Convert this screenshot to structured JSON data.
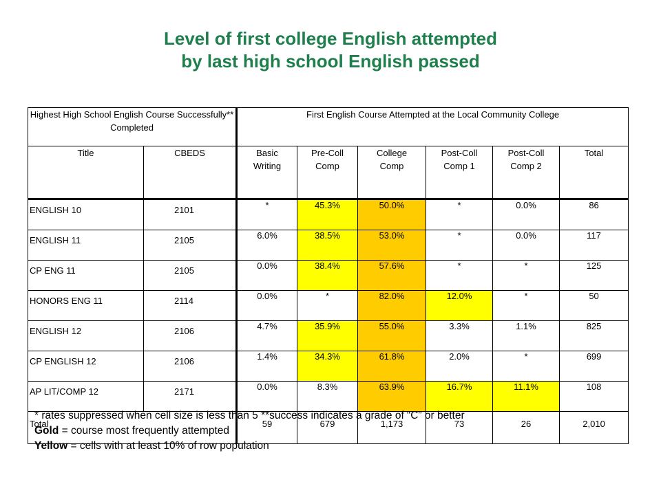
{
  "title": {
    "line1": "Level of first college English attempted",
    "line2": "by last high school English passed"
  },
  "table": {
    "group_headers": {
      "left": "Highest High School English Course Successfully** Completed",
      "right": "First English Course Attempted at the Local Community College"
    },
    "columns": [
      "Title",
      "CBEDS",
      "Basic Writing",
      "Pre-Coll Comp",
      "College Comp",
      "Post-Coll Comp 1",
      "Post-Coll Comp 2",
      "Total"
    ],
    "rows": [
      {
        "title": "ENGLISH 10",
        "cbeds": "2101",
        "basic": "*",
        "precoll": "45.3%",
        "college": "50.0%",
        "post1": "*",
        "post2": "0.0%",
        "total": "86"
      },
      {
        "title": "ENGLISH 11",
        "cbeds": "2105",
        "basic": "6.0%",
        "precoll": "38.5%",
        "college": "53.0%",
        "post1": "*",
        "post2": "0.0%",
        "total": "117"
      },
      {
        "title": "CP ENG 11",
        "cbeds": "2105",
        "basic": "0.0%",
        "precoll": "38.4%",
        "college": "57.6%",
        "post1": "*",
        "post2": "*",
        "total": "125"
      },
      {
        "title": "HONORS ENG 11",
        "cbeds": "2114",
        "basic": "0.0%",
        "precoll": "*",
        "college": "82.0%",
        "post1": "12.0%",
        "post2": "*",
        "total": "50"
      },
      {
        "title": "ENGLISH 12",
        "cbeds": "2106",
        "basic": "4.7%",
        "precoll": "35.9%",
        "college": "55.0%",
        "post1": "3.3%",
        "post2": "1.1%",
        "total": "825"
      },
      {
        "title": "CP ENGLISH 12",
        "cbeds": "2106",
        "basic": "1.4%",
        "precoll": "34.3%",
        "college": "61.8%",
        "post1": "2.0%",
        "post2": "*",
        "total": "699"
      },
      {
        "title": "AP LIT/COMP 12",
        "cbeds": "2171",
        "basic": "0.0%",
        "precoll": "8.3%",
        "college": "63.9%",
        "post1": "16.7%",
        "post2": "11.1%",
        "total": "108"
      }
    ],
    "total_row": {
      "label": "Total",
      "basic": "59",
      "precoll": "679",
      "college": "1,173",
      "post1": "73",
      "post2": "26",
      "total": "2,010"
    }
  },
  "highlight_colors": {
    "gold": "#ffcc00",
    "yellow": "#ffff00"
  },
  "notes": {
    "line1": "* rates suppressed when cell size is less than 5 **success indicates a grade of “C” or better",
    "gold_word": "Gold",
    "gold_desc": " = course most frequently attempted",
    "yellow_word": "Yellow",
    "yellow_desc": " = cells with at least 10% of row population"
  }
}
